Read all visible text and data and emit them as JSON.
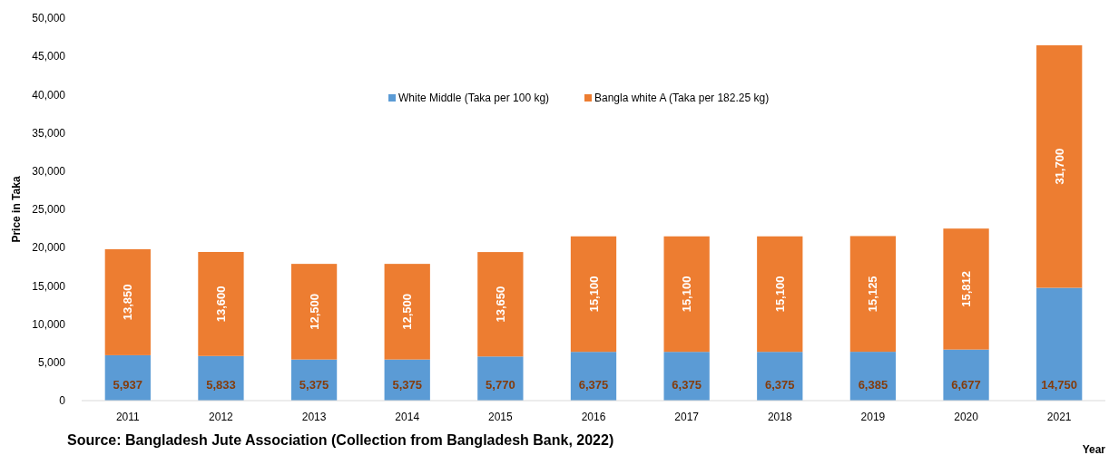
{
  "chart_data": {
    "type": "bar",
    "stacked": true,
    "ylabel": "Price in Taka",
    "xlabel": "Year",
    "annotations": [
      "Source: Bangladesh Jute Association (Collection from Bangladesh Bank, 2022)"
    ],
    "categories": [
      "2011",
      "2012",
      "2013",
      "2014",
      "2015",
      "2016",
      "2017",
      "2018",
      "2019",
      "2020",
      "2021"
    ],
    "series": [
      {
        "name": "White Middle (Taka per 100 kg)",
        "color": "#5b9bd5",
        "values": [
          5937,
          5833,
          5375,
          5375,
          5770,
          6375,
          6375,
          6375,
          6385,
          6677,
          14750
        ],
        "value_labels": [
          "5,937",
          "5,833",
          "5,375",
          "5,375",
          "5,770",
          "6,375",
          "6,375",
          "6,375",
          "6,385",
          "6,677",
          "14,750"
        ]
      },
      {
        "name": "Bangla white A (Taka per 182.25 kg)",
        "color": "#ed7d31",
        "values": [
          13850,
          13600,
          12500,
          12500,
          13650,
          15100,
          15100,
          15100,
          15125,
          15812,
          31700
        ],
        "value_labels": [
          "13,850",
          "13,600",
          "12,500",
          "12,500",
          "13,650",
          "15,100",
          "15,100",
          "15,100",
          "15,125",
          "15,812",
          "31,700"
        ]
      }
    ],
    "ylim": [
      0,
      50000
    ],
    "yticks": [
      0,
      {
        "value": 5000,
        "label": "5,000"
      },
      {
        "value": 10000,
        "label": "10,000"
      },
      {
        "value": 15000,
        "label": "15,000"
      },
      {
        "value": 20000,
        "label": "20,000"
      },
      {
        "value": 25000,
        "label": "25,000"
      },
      {
        "value": 30000,
        "label": "30,000"
      },
      {
        "value": 35000,
        "label": "35,000"
      },
      {
        "value": 40000,
        "label": "40,000"
      },
      {
        "value": 45000,
        "label": "45,000"
      },
      {
        "value": 50000,
        "label": "50,000"
      }
    ],
    "grid": false,
    "legend": "top"
  }
}
